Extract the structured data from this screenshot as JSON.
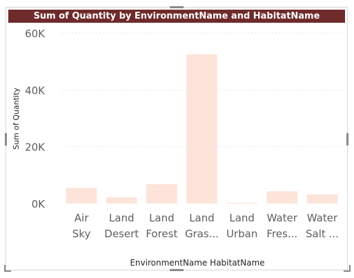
{
  "chart_data": {
    "type": "bar",
    "title": "Sum of Quantity by EnvironmentName and HabitatName",
    "xlabel": "EnvironmentName HabitatName",
    "ylabel": "Sum of Quantity",
    "ylim": [
      0,
      60000
    ],
    "yticks": [
      0,
      20000,
      40000,
      60000
    ],
    "ytick_labels": [
      "0K",
      "20K",
      "40K",
      "60K"
    ],
    "grid": true,
    "categories": [
      {
        "line1": "Air",
        "line2": "Sky"
      },
      {
        "line1": "Land",
        "line2": "Desert"
      },
      {
        "line1": "Land",
        "line2": "Forest"
      },
      {
        "line1": "Land",
        "line2": "Gras..."
      },
      {
        "line1": "Land",
        "line2": "Urban"
      },
      {
        "line1": "Water",
        "line2": "Fres..."
      },
      {
        "line1": "Water",
        "line2": "Salt ..."
      }
    ],
    "values": [
      5500,
      2200,
      6800,
      52500,
      300,
      4300,
      3200
    ],
    "bar_color": "#fce4da"
  },
  "colors": {
    "title_bg": "#6f2b2b",
    "title_text": "#ffffff",
    "axis_text": "#605e5c",
    "grid": "#e6e6e6"
  }
}
